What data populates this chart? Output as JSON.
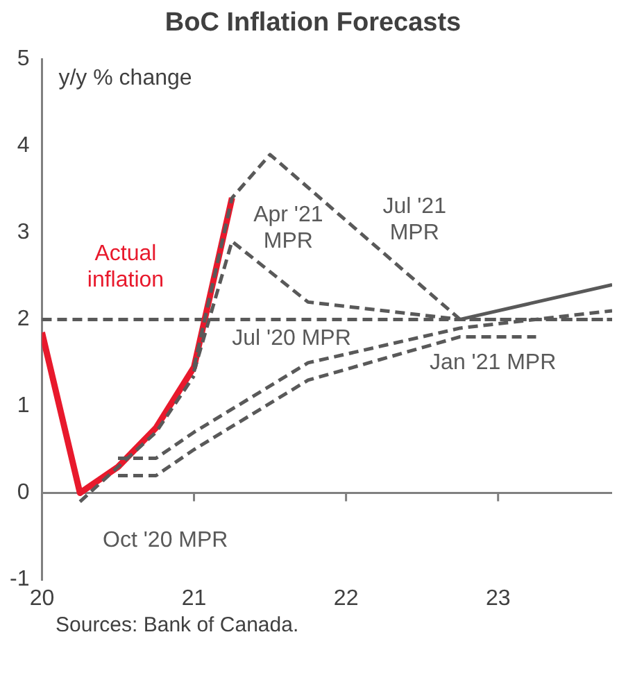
{
  "chart_data": {
    "type": "line",
    "title": "BoC Inflation Forecasts",
    "ylabel": "y/y % change",
    "annotations": [
      "Sources: Bank of Canada."
    ],
    "xlim": [
      2020,
      2023.75
    ],
    "xticks": [
      {
        "value": 2020,
        "label": "20"
      },
      {
        "value": 2021,
        "label": "21"
      },
      {
        "value": 2022,
        "label": "22"
      },
      {
        "value": 2023,
        "label": "23"
      }
    ],
    "ylim": [
      -1,
      5
    ],
    "yticks": [
      -1,
      0,
      1,
      2,
      3,
      4,
      5
    ],
    "grid": false,
    "legend": false,
    "marker": "none",
    "ref_lines": [
      {
        "axis": "y",
        "value": 2,
        "color": "#595959",
        "line_style": "dashed"
      }
    ],
    "series": [
      {
        "name": "Jul '20 MPR",
        "color": "#595959",
        "line_style": "dashed",
        "x": [
          2020.5,
          2020.75,
          2021,
          2021.75,
          2022.75,
          2023.75
        ],
        "values": [
          0.4,
          0.4,
          0.7,
          1.5,
          1.9,
          2.1
        ]
      },
      {
        "name": "Oct '20 MPR",
        "color": "#595959",
        "line_style": "dashed",
        "x": [
          2020.25,
          2020.5,
          2020.75,
          2021
        ],
        "values": [
          -0.1,
          0.3,
          0.7,
          1.35
        ]
      },
      {
        "name": "Jan '21 MPR",
        "color": "#595959",
        "line_style": "dashed",
        "x": [
          2020.5,
          2020.75,
          2021,
          2021.75,
          2022.75,
          2023.25
        ],
        "values": [
          0.2,
          0.2,
          0.5,
          1.3,
          1.8,
          1.8
        ]
      },
      {
        "name": "Apr '21 MPR",
        "color": "#595959",
        "line_style": "dashed",
        "x": [
          2021,
          2021.25,
          2021.75,
          2022.75,
          2023.75
        ],
        "values": [
          1.4,
          2.9,
          2.2,
          2.0,
          2.0
        ]
      },
      {
        "name": "Jul '21 MPR",
        "color": "#595959",
        "line_style": "dashed",
        "x": [
          2021,
          2021.25,
          2021.5,
          2022.75
        ],
        "values": [
          1.45,
          3.4,
          3.9,
          2.0
        ]
      },
      {
        "color": "#595959",
        "line_style": "solid",
        "x": [
          2022.75,
          2023.75
        ],
        "values": [
          2.0,
          2.4
        ]
      },
      {
        "name": "Actual inflation",
        "color": "#e8192c",
        "line_style": "solid",
        "x": [
          2020,
          2020.25,
          2020.5,
          2020.75,
          2021,
          2021.25
        ],
        "values": [
          1.85,
          0.0,
          0.3,
          0.75,
          1.45,
          3.4
        ]
      }
    ]
  }
}
